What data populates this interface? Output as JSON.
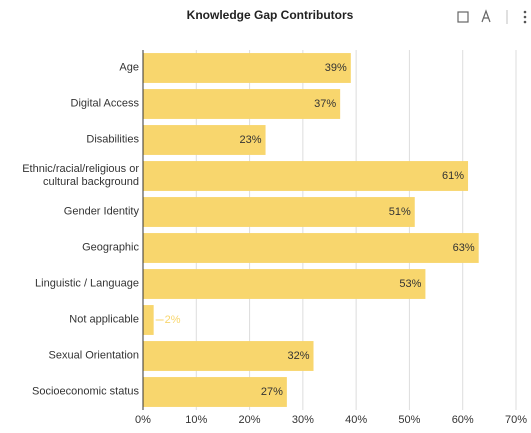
{
  "chart_data": {
    "type": "barh",
    "title": "Knowledge Gap Contributors",
    "categories": [
      "Age",
      "Digital Access",
      "Disabilities",
      "Ethnic/racial/religious or cultural background",
      "Gender Identity",
      "Geographic",
      "Linguistic / Language",
      "Not applicable",
      "Sexual Orientation",
      "Socioeconomic status"
    ],
    "values": [
      39,
      37,
      23,
      61,
      51,
      63,
      53,
      2,
      32,
      27
    ],
    "value_labels": [
      "39%",
      "37%",
      "23%",
      "61%",
      "51%",
      "63%",
      "53%",
      "2%",
      "32%",
      "27%"
    ],
    "color": "#f8d66d",
    "xlim": [
      0,
      70
    ],
    "xticks": [
      {
        "value": 0,
        "label": "0%"
      },
      {
        "value": 10,
        "label": "10%"
      },
      {
        "value": 20,
        "label": "20%"
      },
      {
        "value": 30,
        "label": "30%"
      },
      {
        "value": 40,
        "label": "40%"
      },
      {
        "value": 50,
        "label": "50%"
      },
      {
        "value": 60,
        "label": "60%"
      },
      {
        "value": 70,
        "label": "70%"
      }
    ],
    "grid": true
  }
}
